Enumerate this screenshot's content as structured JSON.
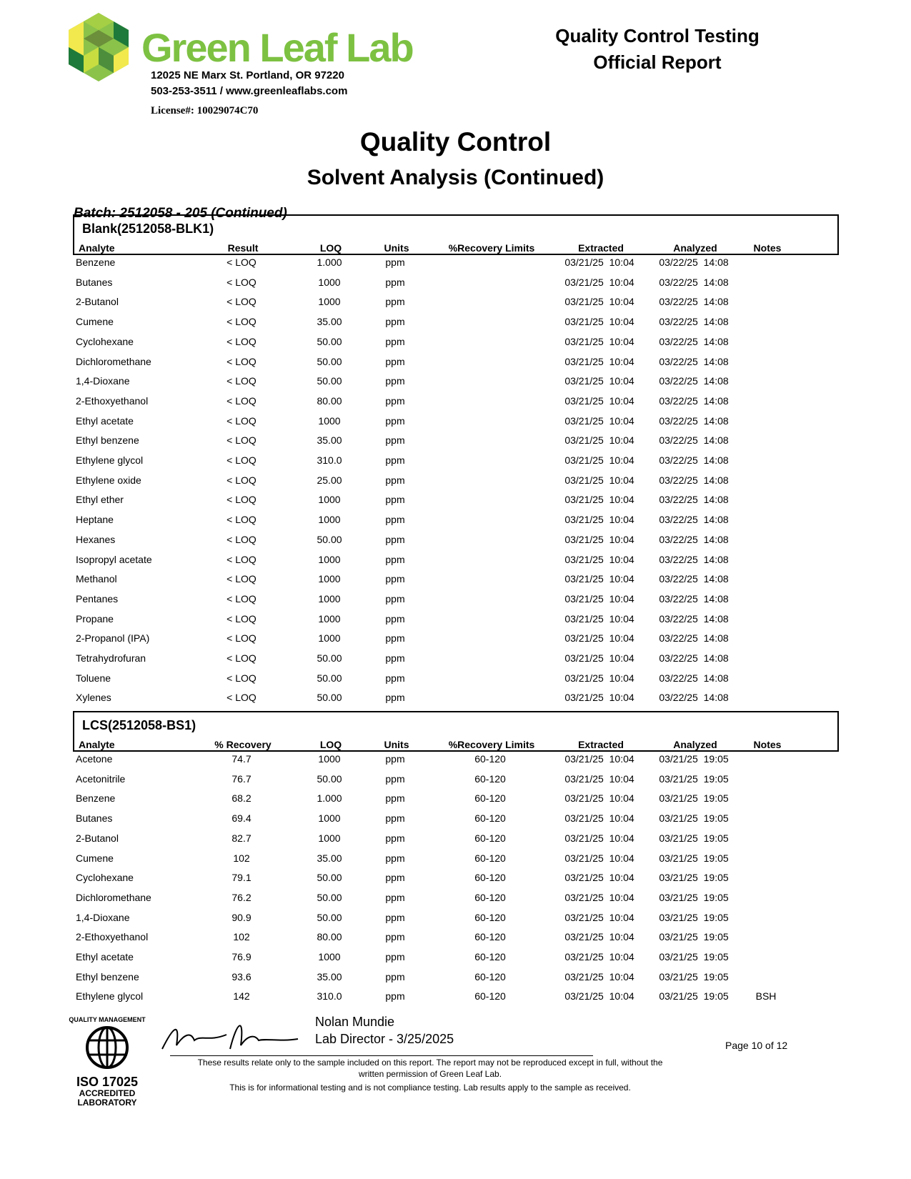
{
  "header": {
    "logo_text": "Green Leaf Lab",
    "address": "12025 NE Marx St. Portland, OR 97220",
    "contact": "503-253-3511 / www.greenleaflabs.com",
    "license": "License#: 10029074C70",
    "report_title_1": "Quality Control Testing",
    "report_title_2": "Official Report"
  },
  "title": "Quality Control",
  "subtitle": "Solvent Analysis (Continued)",
  "batch": "Batch:  2512058 - 205 (Continued)",
  "blank": {
    "title": "Blank(2512058-BLK1)",
    "columns": [
      "Analyte",
      "Result",
      "LOQ",
      "Units",
      "%Recovery Limits",
      "Extracted",
      "Analyzed",
      "Notes"
    ],
    "rows": [
      [
        "Benzene",
        "< LOQ",
        "1.000",
        "ppm",
        "",
        "03/21/25  10:04",
        "03/22/25  14:08",
        ""
      ],
      [
        "Butanes",
        "< LOQ",
        "1000",
        "ppm",
        "",
        "03/21/25  10:04",
        "03/22/25  14:08",
        ""
      ],
      [
        "2-Butanol",
        "< LOQ",
        "1000",
        "ppm",
        "",
        "03/21/25  10:04",
        "03/22/25  14:08",
        ""
      ],
      [
        "Cumene",
        "< LOQ",
        "35.00",
        "ppm",
        "",
        "03/21/25  10:04",
        "03/22/25  14:08",
        ""
      ],
      [
        "Cyclohexane",
        "< LOQ",
        "50.00",
        "ppm",
        "",
        "03/21/25  10:04",
        "03/22/25  14:08",
        ""
      ],
      [
        "Dichloromethane",
        "< LOQ",
        "50.00",
        "ppm",
        "",
        "03/21/25  10:04",
        "03/22/25  14:08",
        ""
      ],
      [
        "1,4-Dioxane",
        "< LOQ",
        "50.00",
        "ppm",
        "",
        "03/21/25  10:04",
        "03/22/25  14:08",
        ""
      ],
      [
        "2-Ethoxyethanol",
        "< LOQ",
        "80.00",
        "ppm",
        "",
        "03/21/25  10:04",
        "03/22/25  14:08",
        ""
      ],
      [
        "Ethyl acetate",
        "< LOQ",
        "1000",
        "ppm",
        "",
        "03/21/25  10:04",
        "03/22/25  14:08",
        ""
      ],
      [
        "Ethyl benzene",
        "< LOQ",
        "35.00",
        "ppm",
        "",
        "03/21/25  10:04",
        "03/22/25  14:08",
        ""
      ],
      [
        "Ethylene glycol",
        "< LOQ",
        "310.0",
        "ppm",
        "",
        "03/21/25  10:04",
        "03/22/25  14:08",
        ""
      ],
      [
        "Ethylene oxide",
        "< LOQ",
        "25.00",
        "ppm",
        "",
        "03/21/25  10:04",
        "03/22/25  14:08",
        ""
      ],
      [
        "Ethyl ether",
        "< LOQ",
        "1000",
        "ppm",
        "",
        "03/21/25  10:04",
        "03/22/25  14:08",
        ""
      ],
      [
        "Heptane",
        "< LOQ",
        "1000",
        "ppm",
        "",
        "03/21/25  10:04",
        "03/22/25  14:08",
        ""
      ],
      [
        "Hexanes",
        "< LOQ",
        "50.00",
        "ppm",
        "",
        "03/21/25  10:04",
        "03/22/25  14:08",
        ""
      ],
      [
        "Isopropyl acetate",
        "< LOQ",
        "1000",
        "ppm",
        "",
        "03/21/25  10:04",
        "03/22/25  14:08",
        ""
      ],
      [
        "Methanol",
        "< LOQ",
        "1000",
        "ppm",
        "",
        "03/21/25  10:04",
        "03/22/25  14:08",
        ""
      ],
      [
        "Pentanes",
        "< LOQ",
        "1000",
        "ppm",
        "",
        "03/21/25  10:04",
        "03/22/25  14:08",
        ""
      ],
      [
        "Propane",
        "< LOQ",
        "1000",
        "ppm",
        "",
        "03/21/25  10:04",
        "03/22/25  14:08",
        ""
      ],
      [
        "2-Propanol (IPA)",
        "< LOQ",
        "1000",
        "ppm",
        "",
        "03/21/25  10:04",
        "03/22/25  14:08",
        ""
      ],
      [
        "Tetrahydrofuran",
        "< LOQ",
        "50.00",
        "ppm",
        "",
        "03/21/25  10:04",
        "03/22/25  14:08",
        ""
      ],
      [
        "Toluene",
        "< LOQ",
        "50.00",
        "ppm",
        "",
        "03/21/25  10:04",
        "03/22/25  14:08",
        ""
      ],
      [
        "Xylenes",
        "< LOQ",
        "50.00",
        "ppm",
        "",
        "03/21/25  10:04",
        "03/22/25  14:08",
        ""
      ]
    ]
  },
  "lcs": {
    "title": "LCS(2512058-BS1)",
    "columns": [
      "Analyte",
      "% Recovery",
      "LOQ",
      "Units",
      "%Recovery Limits",
      "Extracted",
      "Analyzed",
      "Notes"
    ],
    "rows": [
      [
        "Acetone",
        "74.7",
        "1000",
        "ppm",
        "60-120",
        "03/21/25  10:04",
        "03/21/25  19:05",
        ""
      ],
      [
        "Acetonitrile",
        "76.7",
        "50.00",
        "ppm",
        "60-120",
        "03/21/25  10:04",
        "03/21/25  19:05",
        ""
      ],
      [
        "Benzene",
        "68.2",
        "1.000",
        "ppm",
        "60-120",
        "03/21/25  10:04",
        "03/21/25  19:05",
        ""
      ],
      [
        "Butanes",
        "69.4",
        "1000",
        "ppm",
        "60-120",
        "03/21/25  10:04",
        "03/21/25  19:05",
        ""
      ],
      [
        "2-Butanol",
        "82.7",
        "1000",
        "ppm",
        "60-120",
        "03/21/25  10:04",
        "03/21/25  19:05",
        ""
      ],
      [
        "Cumene",
        "102",
        "35.00",
        "ppm",
        "60-120",
        "03/21/25  10:04",
        "03/21/25  19:05",
        ""
      ],
      [
        "Cyclohexane",
        "79.1",
        "50.00",
        "ppm",
        "60-120",
        "03/21/25  10:04",
        "03/21/25  19:05",
        ""
      ],
      [
        "Dichloromethane",
        "76.2",
        "50.00",
        "ppm",
        "60-120",
        "03/21/25  10:04",
        "03/21/25  19:05",
        ""
      ],
      [
        "1,4-Dioxane",
        "90.9",
        "50.00",
        "ppm",
        "60-120",
        "03/21/25  10:04",
        "03/21/25  19:05",
        ""
      ],
      [
        "2-Ethoxyethanol",
        "102",
        "80.00",
        "ppm",
        "60-120",
        "03/21/25  10:04",
        "03/21/25  19:05",
        ""
      ],
      [
        "Ethyl acetate",
        "76.9",
        "1000",
        "ppm",
        "60-120",
        "03/21/25  10:04",
        "03/21/25  19:05",
        ""
      ],
      [
        "Ethyl benzene",
        "93.6",
        "35.00",
        "ppm",
        "60-120",
        "03/21/25  10:04",
        "03/21/25  19:05",
        ""
      ],
      [
        "Ethylene glycol",
        "142",
        "310.0",
        "ppm",
        "60-120",
        "03/21/25  10:04",
        "03/21/25  19:05",
        "BSH"
      ]
    ]
  },
  "footer": {
    "seal_text": "QUALITY MANAGEMENT SYSTEM",
    "iso": "ISO 17025",
    "accredited": "ACCREDITED",
    "laboratory": "LABORATORY",
    "signer": "Nolan Mundie",
    "signer_title": "Lab Director - 3/25/2025",
    "page": "Page 10 of 12",
    "disclaimer_1": "These results relate only to the sample included on this report. The report may not be reproduced except in full, without the",
    "disclaimer_2": "written permission of Green Leaf Lab.",
    "disclaimer_3": "This is for informational testing and is not compliance testing. Lab results apply to the sample as received."
  },
  "colors": {
    "brand_green": "#7dc142"
  }
}
